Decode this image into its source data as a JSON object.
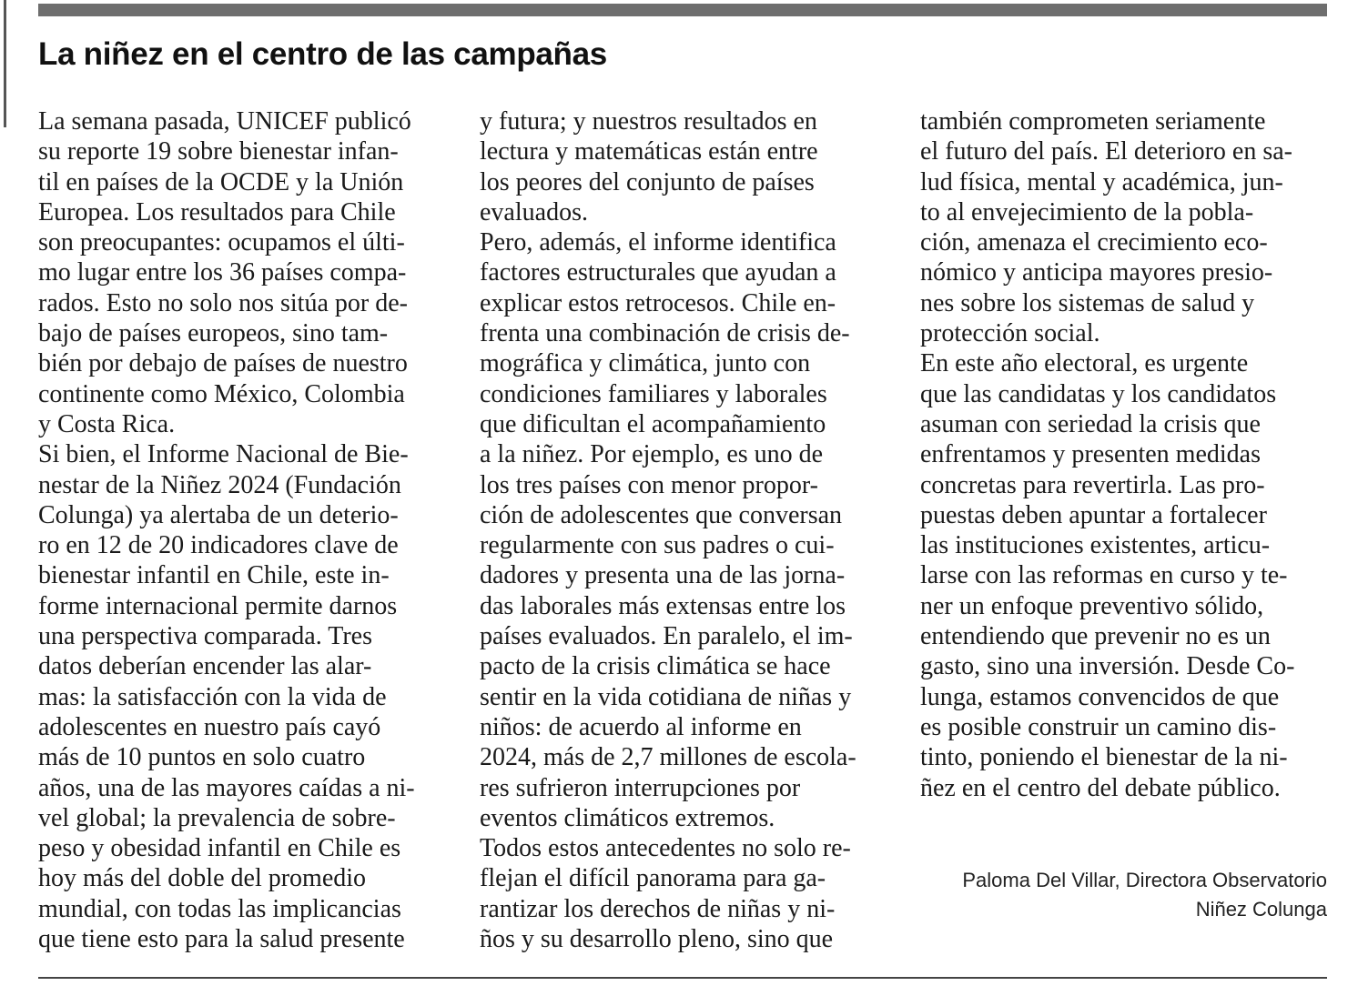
{
  "article": {
    "title": "La niñez en el centro de las campañas",
    "columns": [
      [
        "La semana pasada, UNICEF publicó",
        "su reporte 19 sobre bienestar infan-",
        "til en países de la OCDE y la Unión",
        "Europea. Los resultados para Chile",
        "son preocupantes: ocupamos el últi-",
        "mo lugar entre los 36 países compa-",
        "rados. Esto no solo nos sitúa por de-",
        "bajo de países europeos, sino tam-",
        "bién por debajo de países de nuestro",
        "continente como México, Colombia",
        "y Costa Rica.",
        "Si bien, el Informe Nacional de Bie-",
        "nestar de la Niñez 2024 (Fundación",
        "Colunga) ya alertaba de un deterio-",
        "ro en 12 de 20 indicadores clave de",
        "bienestar infantil en Chile, este in-",
        "forme internacional permite darnos",
        "una perspectiva comparada. Tres",
        "datos deberían encender las alar-",
        "mas: la satisfacción con la vida de",
        "adolescentes en nuestro país cayó",
        "más de 10 puntos en solo cuatro",
        "años, una de las mayores caídas a ni-",
        "vel global; la prevalencia de sobre-",
        "peso y obesidad infantil en Chile es",
        "hoy más del doble del promedio",
        "mundial, con todas las implicancias",
        "que tiene esto para la salud presente"
      ],
      [
        "y futura; y nuestros resultados en",
        "lectura y matemáticas están entre",
        "los peores del conjunto de países",
        "evaluados.",
        "Pero, además, el informe identifica",
        "factores estructurales que ayudan a",
        "explicar estos retrocesos. Chile en-",
        "frenta una combinación de crisis de-",
        "mográfica y climática, junto con",
        "condiciones familiares y laborales",
        "que dificultan el acompañamiento",
        "a la niñez. Por ejemplo, es uno de",
        "los tres países con menor propor-",
        "ción de adolescentes que conversan",
        "regularmente con sus padres o cui-",
        "dadores y presenta una de las jorna-",
        "das laborales más extensas entre los",
        "países evaluados. En paralelo, el im-",
        "pacto de la crisis climática se hace",
        "sentir en la vida cotidiana de niñas y",
        "niños: de acuerdo al informe en",
        "2024, más de 2,7 millones de escola-",
        "res sufrieron interrupciones por",
        "eventos climáticos extremos.",
        "Todos estos antecedentes no solo re-",
        "flejan el difícil panorama para ga-",
        "rantizar los derechos de niñas y ni-",
        "ños y su desarrollo pleno, sino que"
      ],
      [
        "también comprometen seriamente",
        "el futuro del país. El deterioro en sa-",
        "lud física, mental y académica, jun-",
        "to al envejecimiento de la pobla-",
        "ción, amenaza el crecimiento eco-",
        "nómico y anticipa mayores presio-",
        "nes sobre los sistemas de salud y",
        "protección social.",
        "En este año electoral, es urgente",
        "que las candidatas y los candidatos",
        "asuman con seriedad la crisis que",
        "enfrentamos y presenten medidas",
        "concretas para revertirla. Las pro-",
        "puestas deben apuntar a fortalecer",
        "las instituciones existentes, articu-",
        "larse con las reformas en curso y te-",
        "ner un enfoque preventivo sólido,",
        "entendiendo que prevenir no es un",
        "gasto, sino una inversión. Desde Co-",
        "lunga, estamos convencidos de que",
        "es posible construir un camino dis-",
        "tinto, poniendo el bienestar de la ni-",
        "ñez en el centro del debate público."
      ]
    ],
    "signature": {
      "line1": "Paloma Del Villar, Directora Observatorio",
      "line2": "Niñez Colunga"
    }
  }
}
